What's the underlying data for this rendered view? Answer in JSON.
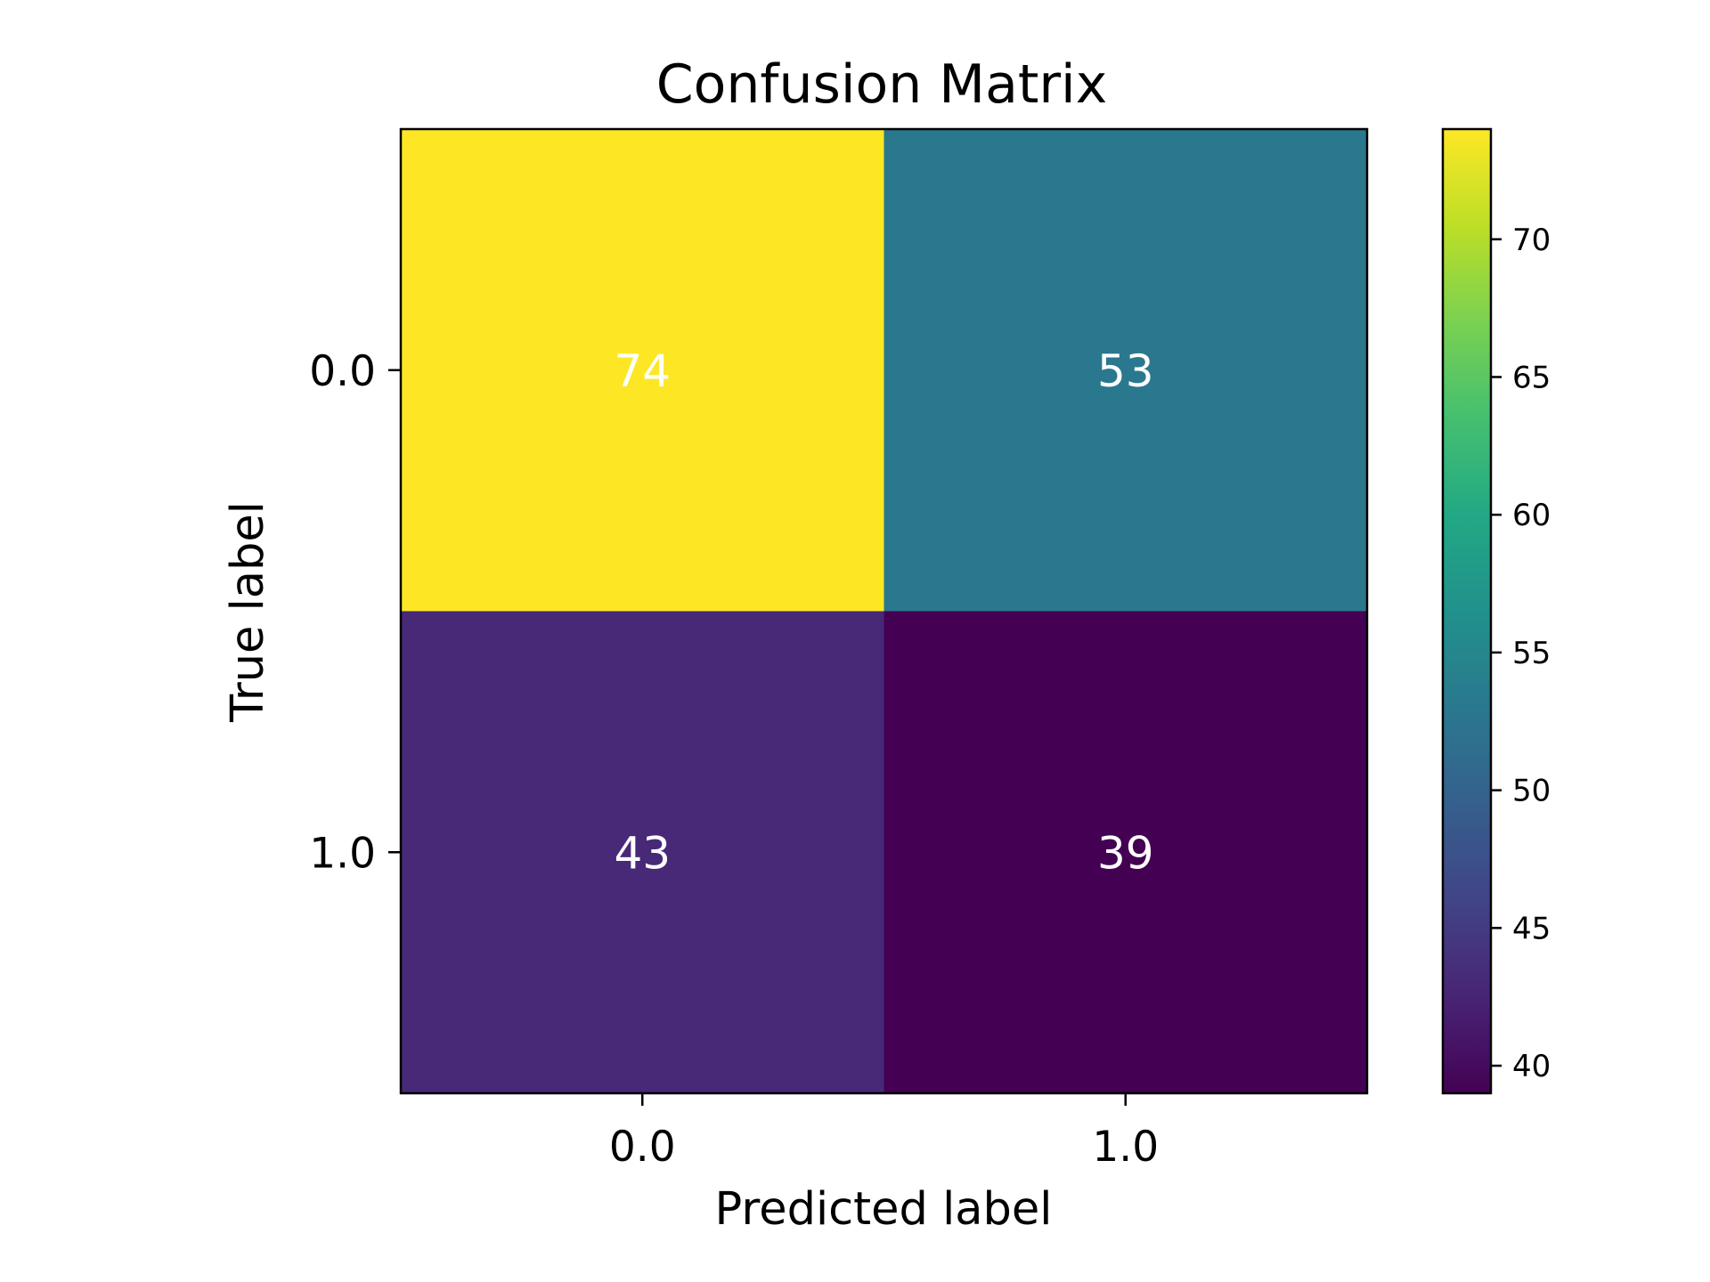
{
  "chart_data": {
    "type": "heatmap",
    "title": "Confusion Matrix",
    "xlabel": "Predicted label",
    "ylabel": "True label",
    "x_categories": [
      "0.0",
      "1.0"
    ],
    "y_categories": [
      "0.0",
      "1.0"
    ],
    "values": [
      [
        74,
        53
      ],
      [
        43,
        39
      ]
    ],
    "colormap": "viridis",
    "colorbar": {
      "range": [
        39,
        74
      ],
      "ticks": [
        40,
        45,
        50,
        55,
        60,
        65,
        70
      ],
      "tick_labels": [
        "40",
        "45",
        "50",
        "55",
        "60",
        "65",
        "70"
      ]
    },
    "cell_text_color": "#ffffff",
    "grid": false
  }
}
